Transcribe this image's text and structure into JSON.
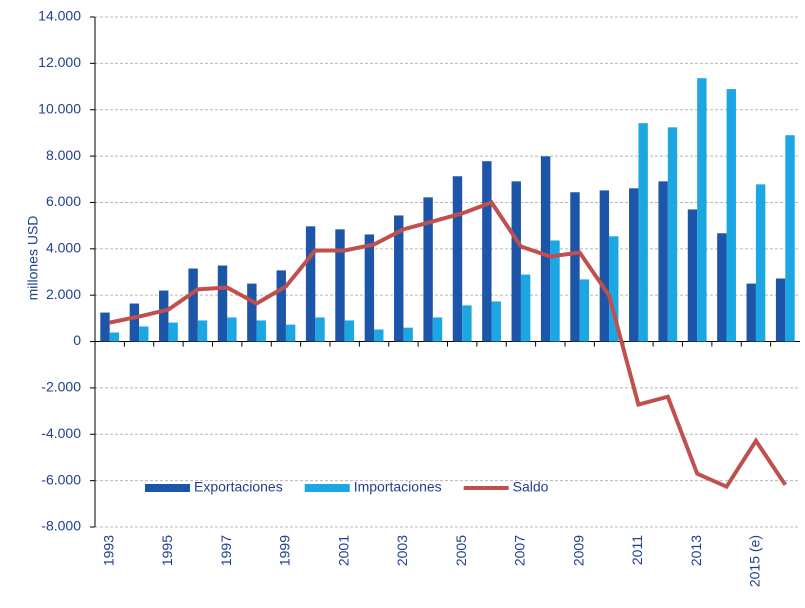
{
  "chart_data": {
    "type": "bar",
    "y_label": "millones USD",
    "categories": [
      "1993",
      null,
      "1995",
      null,
      "1997",
      null,
      "1999",
      null,
      "2001",
      null,
      "2003",
      null,
      "2005",
      null,
      "2007",
      null,
      "2009",
      null,
      "2011",
      null,
      "2013",
      null,
      "2015 (e)",
      null
    ],
    "series": [
      {
        "name": "Exportaciones",
        "type": "bar",
        "color": "#1d56a8",
        "values": [
          1250,
          1640,
          2200,
          3150,
          3280,
          2500,
          3070,
          4970,
          4840,
          4620,
          5440,
          6220,
          7130,
          7780,
          6910,
          7990,
          6440,
          6520,
          6610,
          6910,
          5700,
          4670,
          2500,
          2720
        ]
      },
      {
        "name": "Importaciones",
        "type": "bar",
        "color": "#1ca6e2",
        "values": [
          390,
          650,
          820,
          910,
          1040,
          910,
          730,
          1040,
          910,
          520,
          600,
          1040,
          1560,
          1730,
          2890,
          4360,
          2680,
          4540,
          9420,
          9240,
          11360,
          10890,
          6780,
          8900
        ]
      },
      {
        "name": "Saldo",
        "type": "line",
        "color": "#c0504d",
        "values": [
          820,
          1080,
          1380,
          2250,
          2330,
          1640,
          2380,
          3930,
          3930,
          4190,
          4840,
          5180,
          5530,
          6000,
          4100,
          3670,
          3840,
          1990,
          -2720,
          -2380,
          -5700,
          -6260,
          -4280,
          -6180
        ]
      }
    ],
    "ylim": [
      -8000,
      14000
    ],
    "yticks": [
      {
        "value": -8000,
        "label": "-8.000"
      },
      {
        "value": -6000,
        "label": "-6.000"
      },
      {
        "value": -4000,
        "label": "-4.000"
      },
      {
        "value": -2000,
        "label": "-2.000"
      },
      0,
      {
        "value": 2000,
        "label": "2.000"
      },
      {
        "value": 4000,
        "label": "4.000"
      },
      {
        "value": 6000,
        "label": "6.000"
      },
      {
        "value": 8000,
        "label": "8.000"
      },
      {
        "value": 10000,
        "label": "10.000"
      },
      {
        "value": 12000,
        "label": "12.000"
      },
      {
        "value": 14000,
        "label": "14.000"
      }
    ],
    "grid": true,
    "legend": "bottom"
  }
}
